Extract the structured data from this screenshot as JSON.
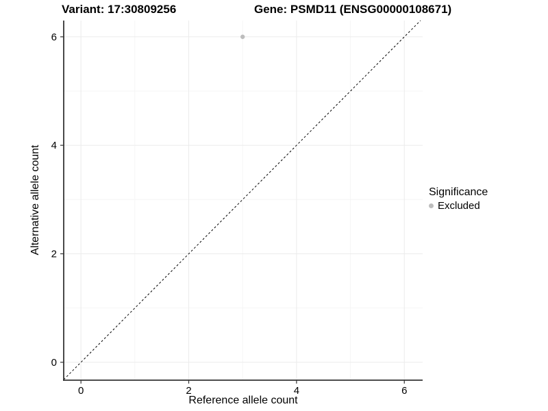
{
  "titles": {
    "variant": "Variant: 17:30809256",
    "gene": "Gene: PSMD11 (ENSG00000108671)"
  },
  "chart_data": {
    "type": "scatter",
    "xlabel": "Reference allele count",
    "ylabel": "Alternative allele count",
    "xlim": [
      -0.32,
      6.34
    ],
    "ylim": [
      -0.33,
      6.3
    ],
    "x_ticks": [
      0,
      2,
      4,
      6
    ],
    "y_ticks": [
      0,
      2,
      4,
      6
    ],
    "minor_ticks": [
      1,
      3,
      5
    ],
    "grid": true,
    "points": [
      {
        "x": 3,
        "y": 6,
        "series": "Excluded"
      }
    ],
    "reference_line": {
      "slope": 1,
      "intercept": 0,
      "style": "dashed",
      "color": "#000000"
    },
    "legend": {
      "title": "Significance",
      "position": "right",
      "items": [
        {
          "label": "Excluded",
          "color": "#bdbdbd"
        }
      ]
    },
    "colors": {
      "point": "#bdbdbd",
      "grid_major": "#ebebeb",
      "grid_minor": "#f5f5f5",
      "axis_line": "#333333",
      "tick_label": "#000000"
    }
  }
}
